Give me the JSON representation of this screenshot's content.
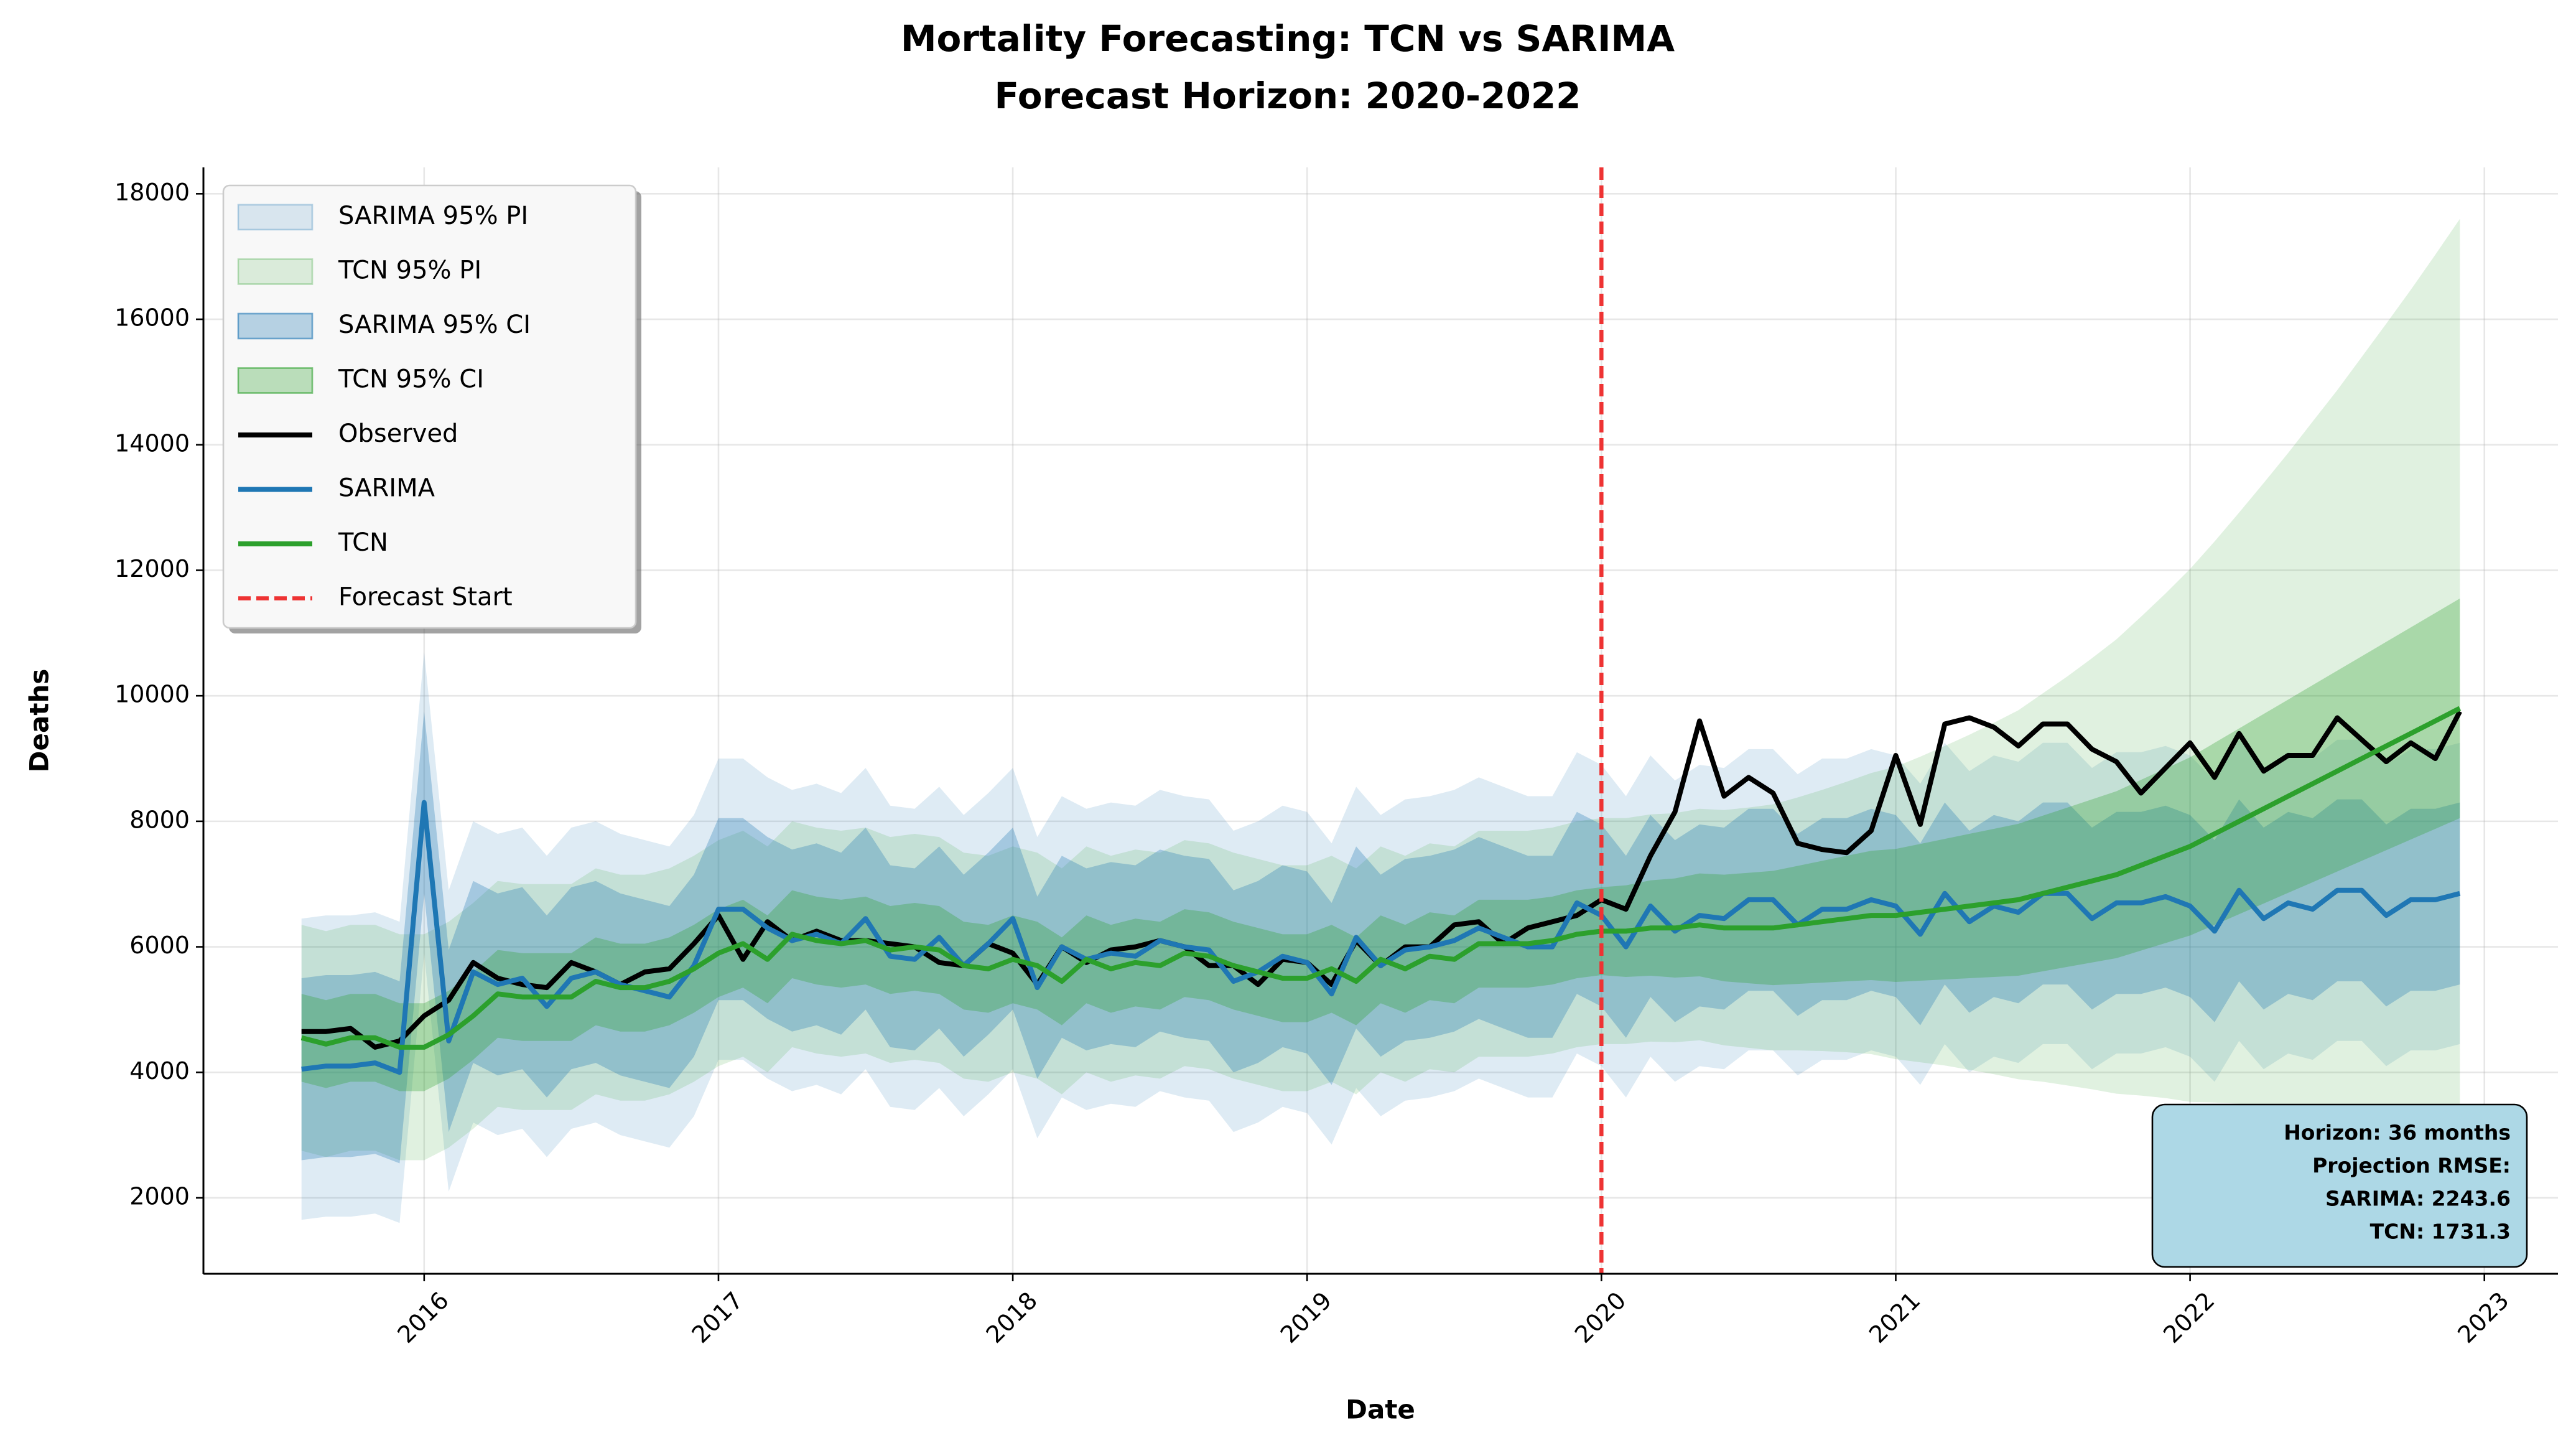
{
  "chart_data": {
    "type": "line",
    "title": "Mortality Forecasting: TCN vs SARIMA",
    "subtitle": "Forecast Horizon: 2020-2022",
    "x_label": "Date",
    "y_label": "Deaths",
    "xlim": [
      "2015-04",
      "2023-04"
    ],
    "xticks": [
      "2016",
      "2017",
      "2018",
      "2019",
      "2020",
      "2021",
      "2022",
      "2023"
    ],
    "ylim": [
      790,
      18420
    ],
    "yticks": [
      2000,
      4000,
      6000,
      8000,
      10000,
      12000,
      14000,
      16000,
      18000
    ],
    "grid": true,
    "legend": "upper left",
    "x": [
      "2015-08",
      "2015-09",
      "2015-10",
      "2015-11",
      "2015-12",
      "2016-01",
      "2016-02",
      "2016-03",
      "2016-04",
      "2016-05",
      "2016-06",
      "2016-07",
      "2016-08",
      "2016-09",
      "2016-10",
      "2016-11",
      "2016-12",
      "2017-01",
      "2017-02",
      "2017-03",
      "2017-04",
      "2017-05",
      "2017-06",
      "2017-07",
      "2017-08",
      "2017-09",
      "2017-10",
      "2017-11",
      "2017-12",
      "2018-01",
      "2018-02",
      "2018-03",
      "2018-04",
      "2018-05",
      "2018-06",
      "2018-07",
      "2018-08",
      "2018-09",
      "2018-10",
      "2018-11",
      "2018-12",
      "2019-01",
      "2019-02",
      "2019-03",
      "2019-04",
      "2019-05",
      "2019-06",
      "2019-07",
      "2019-08",
      "2019-09",
      "2019-10",
      "2019-11",
      "2019-12",
      "2020-01",
      "2020-02",
      "2020-03",
      "2020-04",
      "2020-05",
      "2020-06",
      "2020-07",
      "2020-08",
      "2020-09",
      "2020-10",
      "2020-11",
      "2020-12",
      "2021-01",
      "2021-02",
      "2021-03",
      "2021-04",
      "2021-05",
      "2021-06",
      "2021-07",
      "2021-08",
      "2021-09",
      "2021-10",
      "2021-11",
      "2021-12",
      "2022-01",
      "2022-02",
      "2022-03",
      "2022-04",
      "2022-05",
      "2022-06",
      "2022-07",
      "2022-08",
      "2022-09",
      "2022-10",
      "2022-11",
      "2022-12"
    ],
    "bands": [
      {
        "name": "SARIMA 95% PI",
        "color": "#1f77b4",
        "alpha": 0.15,
        "upper": [
          6450,
          6500,
          6500,
          6550,
          6400,
          10700,
          6900,
          8000,
          7800,
          7900,
          7450,
          7900,
          8000,
          7800,
          7700,
          7600,
          8100,
          9000,
          9000,
          8700,
          8500,
          8600,
          8450,
          8850,
          8250,
          8200,
          8550,
          8100,
          8450,
          8850,
          7750,
          8400,
          8200,
          8300,
          8250,
          8500,
          8400,
          8350,
          7850,
          8000,
          8250,
          8150,
          7650,
          8550,
          8100,
          8350,
          8400,
          8500,
          8700,
          8550,
          8400,
          8400,
          9100,
          8900,
          8400,
          9050,
          8650,
          8900,
          8850,
          9150,
          9150,
          8750,
          9000,
          9000,
          9150,
          9050,
          8600,
          9250,
          8800,
          9050,
          8950,
          9250,
          9250,
          8850,
          9100,
          9100,
          9200,
          9050,
          8650,
          9300,
          8850,
          9100,
          9000,
          9300,
          9300,
          8900,
          9150,
          9150,
          9250
        ],
        "lower": [
          1650,
          1700,
          1700,
          1750,
          1600,
          5900,
          2100,
          3200,
          3000,
          3100,
          2650,
          3100,
          3200,
          3000,
          2900,
          2800,
          3300,
          4200,
          4200,
          3900,
          3700,
          3800,
          3650,
          4050,
          3450,
          3400,
          3750,
          3300,
          3650,
          4050,
          2950,
          3600,
          3400,
          3500,
          3450,
          3700,
          3600,
          3550,
          3050,
          3200,
          3450,
          3350,
          2850,
          3750,
          3300,
          3550,
          3600,
          3700,
          3900,
          3750,
          3600,
          3600,
          4300,
          4100,
          3600,
          4250,
          3850,
          4100,
          4050,
          4350,
          4350,
          3950,
          4200,
          4200,
          4350,
          4250,
          3800,
          4450,
          4000,
          4250,
          4150,
          4450,
          4450,
          4050,
          4300,
          4300,
          4400,
          4250,
          3850,
          4500,
          4050,
          4300,
          4200,
          4500,
          4500,
          4100,
          4350,
          4350,
          4450
        ]
      },
      {
        "name": "TCN 95% PI",
        "color": "#2ca02c",
        "alpha": 0.15,
        "upper": [
          6350,
          6250,
          6350,
          6350,
          6200,
          6200,
          6400,
          6700,
          7050,
          7000,
          7000,
          7000,
          7250,
          7150,
          7150,
          7250,
          7450,
          7700,
          7850,
          7600,
          8000,
          7900,
          7850,
          7900,
          7750,
          7800,
          7750,
          7500,
          7450,
          7600,
          7500,
          7250,
          7600,
          7450,
          7550,
          7500,
          7700,
          7650,
          7500,
          7400,
          7300,
          7300,
          7450,
          7250,
          7600,
          7450,
          7650,
          7600,
          7850,
          7850,
          7850,
          7900,
          8000,
          8050,
          8050,
          8110,
          8130,
          8200,
          8180,
          8220,
          8270,
          8380,
          8500,
          8630,
          8770,
          8870,
          9030,
          9200,
          9380,
          9570,
          9770,
          10040,
          10310,
          10600,
          10900,
          11260,
          11630,
          12020,
          12460,
          12920,
          13390,
          13870,
          14370,
          14870,
          15400,
          15930,
          16470,
          17030,
          17600
        ],
        "lower": [
          2750,
          2650,
          2750,
          2750,
          2600,
          2600,
          2800,
          3100,
          3450,
          3400,
          3400,
          3400,
          3650,
          3550,
          3550,
          3650,
          3850,
          4100,
          4250,
          4000,
          4400,
          4300,
          4250,
          4300,
          4150,
          4200,
          4150,
          3900,
          3850,
          4000,
          3900,
          3650,
          4000,
          3850,
          3950,
          3900,
          4100,
          4050,
          3900,
          3800,
          3700,
          3700,
          3850,
          3650,
          4000,
          3850,
          4050,
          4000,
          4250,
          4250,
          4250,
          4300,
          4400,
          4450,
          4450,
          4490,
          4480,
          4510,
          4430,
          4390,
          4350,
          4350,
          4340,
          4320,
          4290,
          4210,
          4160,
          4110,
          4040,
          3970,
          3890,
          3850,
          3790,
          3730,
          3660,
          3630,
          3590,
          3530,
          3520,
          3500,
          3460,
          3420,
          3360,
          3300,
          3220,
          3130,
          3030,
          2920,
          2800
        ]
      },
      {
        "name": "SARIMA 95% CI",
        "color": "#1f77b4",
        "alpha": 0.3,
        "upper": [
          5500,
          5550,
          5550,
          5600,
          5450,
          9750,
          5950,
          7050,
          6850,
          6950,
          6500,
          6950,
          7050,
          6850,
          6750,
          6650,
          7150,
          8050,
          8050,
          7750,
          7550,
          7650,
          7500,
          7900,
          7300,
          7250,
          7600,
          7150,
          7500,
          7900,
          6800,
          7450,
          7250,
          7350,
          7300,
          7550,
          7450,
          7400,
          6900,
          7050,
          7300,
          7200,
          6700,
          7600,
          7150,
          7400,
          7450,
          7550,
          7750,
          7600,
          7450,
          7450,
          8150,
          7950,
          7450,
          8100,
          7700,
          7950,
          7900,
          8200,
          8200,
          7800,
          8050,
          8050,
          8200,
          8100,
          7650,
          8300,
          7850,
          8100,
          8000,
          8300,
          8300,
          7900,
          8150,
          8150,
          8250,
          8100,
          7700,
          8350,
          7900,
          8150,
          8050,
          8350,
          8350,
          7950,
          8200,
          8200,
          8300
        ],
        "lower": [
          2600,
          2650,
          2650,
          2700,
          2550,
          6850,
          3050,
          4150,
          3950,
          4050,
          3600,
          4050,
          4150,
          3950,
          3850,
          3750,
          4250,
          5150,
          5150,
          4850,
          4650,
          4750,
          4600,
          5000,
          4400,
          4350,
          4700,
          4250,
          4600,
          5000,
          3900,
          4550,
          4350,
          4450,
          4400,
          4650,
          4550,
          4500,
          4000,
          4150,
          4400,
          4300,
          3800,
          4700,
          4250,
          4500,
          4550,
          4650,
          4850,
          4700,
          4550,
          4550,
          5250,
          5050,
          4550,
          5200,
          4800,
          5050,
          5000,
          5300,
          5300,
          4900,
          5150,
          5150,
          5300,
          5200,
          4750,
          5400,
          4950,
          5200,
          5100,
          5400,
          5400,
          5000,
          5250,
          5250,
          5350,
          5200,
          4800,
          5450,
          5000,
          5250,
          5150,
          5450,
          5450,
          5050,
          5300,
          5300,
          5400
        ]
      },
      {
        "name": "TCN 95% CI",
        "color": "#2ca02c",
        "alpha": 0.3,
        "upper": [
          5250,
          5150,
          5250,
          5250,
          5100,
          5100,
          5300,
          5600,
          5950,
          5900,
          5900,
          5900,
          6150,
          6050,
          6050,
          6150,
          6350,
          6600,
          6750,
          6500,
          6900,
          6800,
          6750,
          6800,
          6650,
          6700,
          6650,
          6400,
          6350,
          6500,
          6400,
          6150,
          6500,
          6350,
          6450,
          6400,
          6600,
          6550,
          6400,
          6300,
          6200,
          6200,
          6350,
          6150,
          6500,
          6350,
          6550,
          6500,
          6750,
          6750,
          6750,
          6800,
          6900,
          6950,
          6980,
          7060,
          7090,
          7170,
          7150,
          7180,
          7210,
          7290,
          7370,
          7450,
          7530,
          7560,
          7640,
          7720,
          7800,
          7880,
          7960,
          8090,
          8220,
          8350,
          8480,
          8660,
          8840,
          9020,
          9250,
          9480,
          9710,
          9940,
          10170,
          10400,
          10630,
          10860,
          11090,
          11320,
          11550
        ],
        "lower": [
          3850,
          3750,
          3850,
          3850,
          3700,
          3700,
          3900,
          4200,
          4550,
          4500,
          4500,
          4500,
          4750,
          4650,
          4650,
          4750,
          4950,
          5200,
          5350,
          5100,
          5500,
          5400,
          5350,
          5400,
          5250,
          5300,
          5250,
          5000,
          4950,
          5100,
          5000,
          4750,
          5100,
          4950,
          5050,
          5000,
          5200,
          5150,
          5000,
          4900,
          4800,
          4800,
          4950,
          4750,
          5100,
          4950,
          5150,
          5100,
          5350,
          5350,
          5350,
          5400,
          5500,
          5550,
          5520,
          5540,
          5510,
          5530,
          5450,
          5420,
          5390,
          5410,
          5430,
          5450,
          5470,
          5440,
          5460,
          5480,
          5500,
          5520,
          5540,
          5610,
          5680,
          5750,
          5820,
          5940,
          6060,
          6180,
          6350,
          6520,
          6690,
          6860,
          7030,
          7200,
          7370,
          7540,
          7710,
          7880,
          8050
        ]
      }
    ],
    "series": [
      {
        "name": "Observed",
        "color": "#000000",
        "values": [
          4650,
          4650,
          4700,
          4400,
          4500,
          4900,
          5150,
          5750,
          5500,
          5400,
          5350,
          5750,
          5600,
          5400,
          5600,
          5650,
          6050,
          6500,
          5800,
          6400,
          6100,
          6250,
          6100,
          6100,
          6050,
          6000,
          5750,
          5700,
          6050,
          5900,
          5400,
          6000,
          5750,
          5950,
          6000,
          6100,
          6000,
          5700,
          5700,
          5400,
          5800,
          5750,
          5400,
          6100,
          5700,
          6000,
          6000,
          6350,
          6400,
          6050,
          6300,
          6400,
          6500,
          6750,
          6600,
          7450,
          8150,
          9600,
          8400,
          8700,
          8450,
          7650,
          7550,
          7500,
          7850,
          9050,
          7950,
          9550,
          9650,
          9500,
          9200,
          9550,
          9550,
          9150,
          8950,
          8450,
          8850,
          9250,
          8700,
          9400,
          8800,
          9050,
          9050,
          9650,
          9300,
          8950,
          9250,
          9000,
          9750
        ]
      },
      {
        "name": "SARIMA",
        "color": "#1f77b4",
        "values": [
          4050,
          4100,
          4100,
          4150,
          4000,
          8300,
          4500,
          5600,
          5400,
          5500,
          5050,
          5500,
          5600,
          5400,
          5300,
          5200,
          5700,
          6600,
          6600,
          6300,
          6100,
          6200,
          6050,
          6450,
          5850,
          5800,
          6150,
          5700,
          6050,
          6450,
          5350,
          6000,
          5800,
          5900,
          5850,
          6100,
          6000,
          5950,
          5450,
          5600,
          5850,
          5750,
          5250,
          6150,
          5700,
          5950,
          6000,
          6100,
          6300,
          6150,
          6000,
          6000,
          6700,
          6500,
          6000,
          6650,
          6250,
          6500,
          6450,
          6750,
          6750,
          6350,
          6600,
          6600,
          6750,
          6650,
          6200,
          6850,
          6400,
          6650,
          6550,
          6850,
          6850,
          6450,
          6700,
          6700,
          6800,
          6650,
          6250,
          6900,
          6450,
          6700,
          6600,
          6900,
          6900,
          6500,
          6750,
          6750,
          6850
        ]
      },
      {
        "name": "TCN",
        "color": "#2ca02c",
        "values": [
          4550,
          4450,
          4550,
          4550,
          4400,
          4400,
          4600,
          4900,
          5250,
          5200,
          5200,
          5200,
          5450,
          5350,
          5350,
          5450,
          5650,
          5900,
          6050,
          5800,
          6200,
          6100,
          6050,
          6100,
          5950,
          6000,
          5950,
          5700,
          5650,
          5800,
          5700,
          5450,
          5800,
          5650,
          5750,
          5700,
          5900,
          5850,
          5700,
          5600,
          5500,
          5500,
          5650,
          5450,
          5800,
          5650,
          5850,
          5800,
          6050,
          6050,
          6050,
          6100,
          6200,
          6250,
          6250,
          6300,
          6300,
          6350,
          6300,
          6300,
          6300,
          6350,
          6400,
          6450,
          6500,
          6500,
          6550,
          6600,
          6650,
          6700,
          6750,
          6850,
          6950,
          7050,
          7150,
          7300,
          7450,
          7600,
          7800,
          8000,
          8200,
          8400,
          8600,
          8800,
          9000,
          9200,
          9400,
          9600,
          9800
        ]
      }
    ],
    "vlines": [
      {
        "name": "Forecast Start",
        "x": "2020-01",
        "color": "#ee3333"
      }
    ],
    "annotation": [
      "Horizon: 36 months",
      "Projection RMSE:",
      "SARIMA: 2243.6",
      "TCN: 1731.3"
    ]
  }
}
